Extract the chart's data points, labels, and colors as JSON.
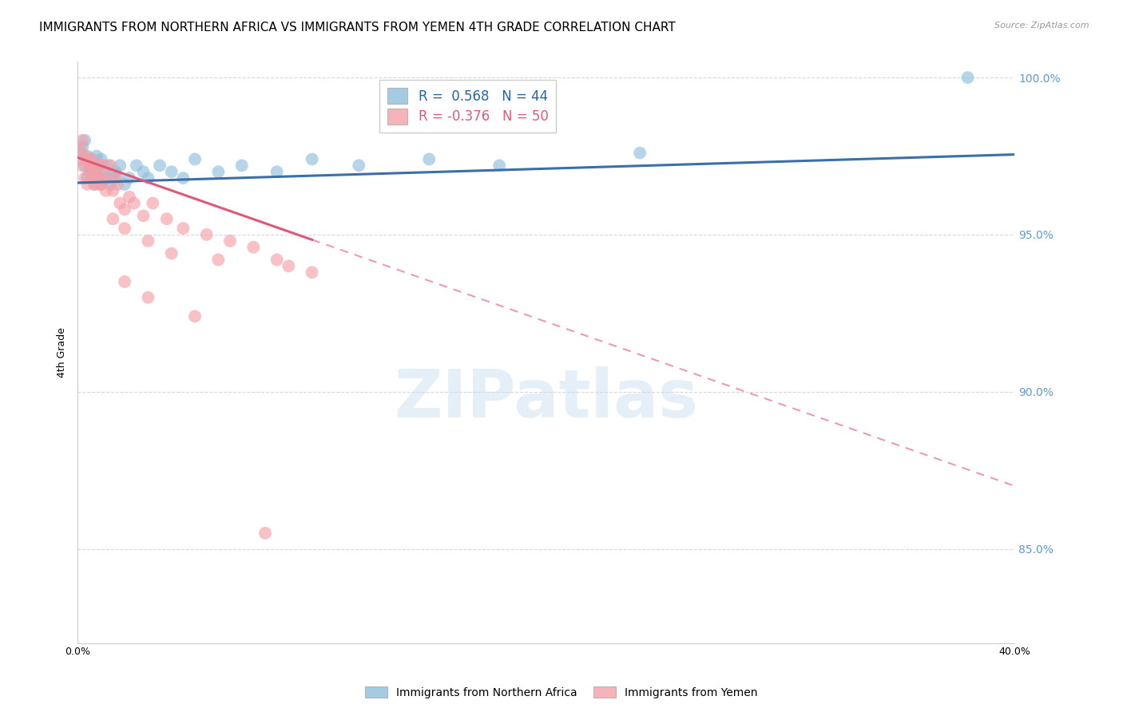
{
  "title": "IMMIGRANTS FROM NORTHERN AFRICA VS IMMIGRANTS FROM YEMEN 4TH GRADE CORRELATION CHART",
  "source": "Source: ZipAtlas.com",
  "ylabel": "4th Grade",
  "x_min": 0.0,
  "x_max": 0.4,
  "y_min": 0.82,
  "y_max": 1.005,
  "x_ticks": [
    0.0,
    0.05,
    0.1,
    0.15,
    0.2,
    0.25,
    0.3,
    0.35,
    0.4
  ],
  "y_ticks": [
    0.85,
    0.9,
    0.95,
    1.0
  ],
  "y_tick_labels": [
    "85.0%",
    "90.0%",
    "95.0%",
    "100.0%"
  ],
  "legend_blue_r": "0.568",
  "legend_blue_n": "44",
  "legend_pink_r": "-0.376",
  "legend_pink_n": "50",
  "blue_color": "#8fbfdc",
  "pink_color": "#f4a0a8",
  "blue_line_color": "#3a6faa",
  "pink_line_color": "#e05878",
  "watermark_text": "ZIPatlas",
  "blue_scatter_x": [
    0.001,
    0.002,
    0.003,
    0.003,
    0.004,
    0.004,
    0.005,
    0.005,
    0.006,
    0.006,
    0.007,
    0.007,
    0.008,
    0.008,
    0.009,
    0.009,
    0.01,
    0.01,
    0.011,
    0.012,
    0.013,
    0.014,
    0.015,
    0.016,
    0.017,
    0.018,
    0.02,
    0.022,
    0.025,
    0.028,
    0.03,
    0.035,
    0.04,
    0.045,
    0.05,
    0.06,
    0.07,
    0.085,
    0.1,
    0.12,
    0.15,
    0.18,
    0.24,
    0.38
  ],
  "blue_scatter_y": [
    0.976,
    0.978,
    0.972,
    0.98,
    0.968,
    0.975,
    0.97,
    0.972,
    0.968,
    0.974,
    0.966,
    0.972,
    0.97,
    0.975,
    0.968,
    0.972,
    0.966,
    0.974,
    0.97,
    0.968,
    0.972,
    0.966,
    0.968,
    0.97,
    0.968,
    0.972,
    0.966,
    0.968,
    0.972,
    0.97,
    0.968,
    0.972,
    0.97,
    0.968,
    0.974,
    0.97,
    0.972,
    0.97,
    0.974,
    0.972,
    0.974,
    0.972,
    0.976,
    1.0
  ],
  "pink_scatter_x": [
    0.001,
    0.001,
    0.002,
    0.002,
    0.003,
    0.003,
    0.004,
    0.004,
    0.005,
    0.005,
    0.006,
    0.006,
    0.007,
    0.007,
    0.008,
    0.008,
    0.009,
    0.009,
    0.01,
    0.01,
    0.011,
    0.012,
    0.013,
    0.014,
    0.015,
    0.016,
    0.017,
    0.018,
    0.02,
    0.022,
    0.024,
    0.028,
    0.032,
    0.038,
    0.045,
    0.055,
    0.065,
    0.075,
    0.085,
    0.1,
    0.015,
    0.02,
    0.03,
    0.04,
    0.06,
    0.09,
    0.02,
    0.03,
    0.05,
    0.08
  ],
  "pink_scatter_y": [
    0.977,
    0.974,
    0.98,
    0.972,
    0.975,
    0.968,
    0.974,
    0.966,
    0.97,
    0.972,
    0.968,
    0.974,
    0.966,
    0.972,
    0.97,
    0.968,
    0.966,
    0.972,
    0.968,
    0.966,
    0.972,
    0.964,
    0.968,
    0.972,
    0.964,
    0.968,
    0.966,
    0.96,
    0.958,
    0.962,
    0.96,
    0.956,
    0.96,
    0.955,
    0.952,
    0.95,
    0.948,
    0.946,
    0.942,
    0.938,
    0.955,
    0.952,
    0.948,
    0.944,
    0.942,
    0.94,
    0.935,
    0.93,
    0.924,
    0.855
  ],
  "background_color": "#ffffff",
  "grid_color": "#d8d8d8",
  "right_axis_color": "#5b9bd5",
  "title_fontsize": 11,
  "axis_label_fontsize": 9,
  "tick_fontsize": 9,
  "legend_fontsize": 12
}
